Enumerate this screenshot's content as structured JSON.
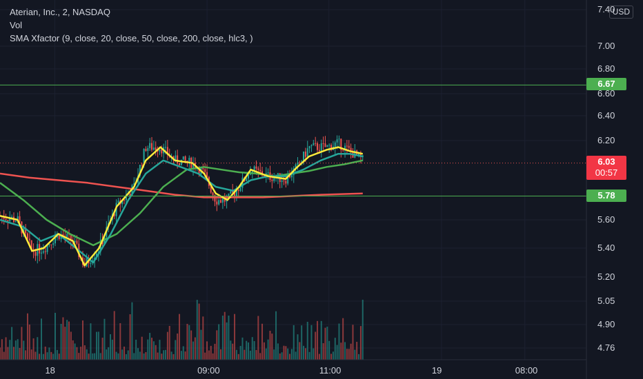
{
  "legend": {
    "symbol": "Aterian, Inc., 2, NASDAQ",
    "vol": "Vol",
    "indicator": "SMA Xfactor (9, close, 20, close, 50, close, 200, close, hlc3, )"
  },
  "currency": "USD",
  "badges": {
    "upper_level": "6.67",
    "last_price": "6.03",
    "countdown": "00:57",
    "lower_level": "5.78"
  },
  "colors": {
    "background": "#131722",
    "up": "#26a69a",
    "down": "#ef5350",
    "sma9": "#ffeb3b",
    "sma20": "#26a69a",
    "sma50": "#4caf50",
    "sma200": "#ef5350",
    "level": "#4caf50"
  },
  "chart_data": {
    "type": "candlestick",
    "y_ticks": [
      "7.40",
      "7.00",
      "6.80",
      "6.60",
      "6.40",
      "6.20",
      "5.60",
      "5.40",
      "5.20",
      "5.05",
      "4.90",
      "4.76"
    ],
    "x_ticks": [
      {
        "label": "18",
        "t": 0.094
      },
      {
        "label": "09:00",
        "t": 0.355
      },
      {
        "label": "11:00",
        "t": 0.564
      },
      {
        "label": "19",
        "t": 0.757
      },
      {
        "label": "08:00",
        "t": 0.9
      }
    ],
    "levels": [
      6.67,
      5.78
    ],
    "last_price": 6.03,
    "sma9": [
      [
        0,
        5.63
      ],
      [
        0.03,
        5.6
      ],
      [
        0.055,
        5.38
      ],
      [
        0.075,
        5.4
      ],
      [
        0.1,
        5.5
      ],
      [
        0.125,
        5.45
      ],
      [
        0.145,
        5.28
      ],
      [
        0.17,
        5.4
      ],
      [
        0.2,
        5.7
      ],
      [
        0.23,
        5.85
      ],
      [
        0.25,
        6.05
      ],
      [
        0.275,
        6.15
      ],
      [
        0.3,
        6.05
      ],
      [
        0.33,
        6.03
      ],
      [
        0.35,
        5.95
      ],
      [
        0.37,
        5.8
      ],
      [
        0.39,
        5.75
      ],
      [
        0.41,
        5.85
      ],
      [
        0.43,
        5.98
      ],
      [
        0.46,
        5.93
      ],
      [
        0.49,
        5.91
      ],
      [
        0.51,
        6.0
      ],
      [
        0.53,
        6.08
      ],
      [
        0.56,
        6.13
      ],
      [
        0.58,
        6.15
      ],
      [
        0.6,
        6.12
      ],
      [
        0.622,
        6.1
      ]
    ],
    "sma20": [
      [
        0,
        5.6
      ],
      [
        0.04,
        5.55
      ],
      [
        0.07,
        5.45
      ],
      [
        0.1,
        5.5
      ],
      [
        0.13,
        5.4
      ],
      [
        0.16,
        5.3
      ],
      [
        0.19,
        5.5
      ],
      [
        0.22,
        5.75
      ],
      [
        0.25,
        5.95
      ],
      [
        0.28,
        6.05
      ],
      [
        0.31,
        6.0
      ],
      [
        0.34,
        5.95
      ],
      [
        0.37,
        5.85
      ],
      [
        0.4,
        5.82
      ],
      [
        0.43,
        5.9
      ],
      [
        0.46,
        5.93
      ],
      [
        0.49,
        5.93
      ],
      [
        0.52,
        5.98
      ],
      [
        0.55,
        6.05
      ],
      [
        0.58,
        6.1
      ],
      [
        0.6,
        6.1
      ],
      [
        0.622,
        6.08
      ]
    ],
    "sma50": [
      [
        0,
        5.88
      ],
      [
        0.04,
        5.75
      ],
      [
        0.08,
        5.6
      ],
      [
        0.12,
        5.5
      ],
      [
        0.16,
        5.42
      ],
      [
        0.2,
        5.5
      ],
      [
        0.24,
        5.65
      ],
      [
        0.28,
        5.85
      ],
      [
        0.32,
        5.98
      ],
      [
        0.35,
        6.0
      ],
      [
        0.38,
        5.98
      ],
      [
        0.41,
        5.96
      ],
      [
        0.44,
        5.95
      ],
      [
        0.47,
        5.93
      ],
      [
        0.5,
        5.95
      ],
      [
        0.53,
        5.97
      ],
      [
        0.56,
        6.0
      ],
      [
        0.59,
        6.02
      ],
      [
        0.622,
        6.05
      ]
    ],
    "sma200": [
      [
        0,
        5.95
      ],
      [
        0.05,
        5.92
      ],
      [
        0.1,
        5.9
      ],
      [
        0.15,
        5.88
      ],
      [
        0.2,
        5.85
      ],
      [
        0.25,
        5.82
      ],
      [
        0.3,
        5.79
      ],
      [
        0.35,
        5.77
      ],
      [
        0.4,
        5.77
      ],
      [
        0.45,
        5.77
      ],
      [
        0.5,
        5.78
      ],
      [
        0.55,
        5.79
      ],
      [
        0.622,
        5.8
      ]
    ],
    "price_path": [
      [
        0,
        5.63
      ],
      [
        0.03,
        5.6
      ],
      [
        0.055,
        5.38
      ],
      [
        0.075,
        5.4
      ],
      [
        0.1,
        5.5
      ],
      [
        0.125,
        5.45
      ],
      [
        0.145,
        5.28
      ],
      [
        0.17,
        5.4
      ],
      [
        0.2,
        5.7
      ],
      [
        0.23,
        5.85
      ],
      [
        0.25,
        6.15
      ],
      [
        0.275,
        6.15
      ],
      [
        0.3,
        6.05
      ],
      [
        0.33,
        6.03
      ],
      [
        0.35,
        5.95
      ],
      [
        0.37,
        5.75
      ],
      [
        0.39,
        5.75
      ],
      [
        0.41,
        5.85
      ],
      [
        0.43,
        5.98
      ],
      [
        0.46,
        5.93
      ],
      [
        0.49,
        5.91
      ],
      [
        0.51,
        6.0
      ],
      [
        0.53,
        6.15
      ],
      [
        0.56,
        6.15
      ],
      [
        0.58,
        6.18
      ],
      [
        0.6,
        6.12
      ],
      [
        0.622,
        6.05
      ]
    ]
  }
}
